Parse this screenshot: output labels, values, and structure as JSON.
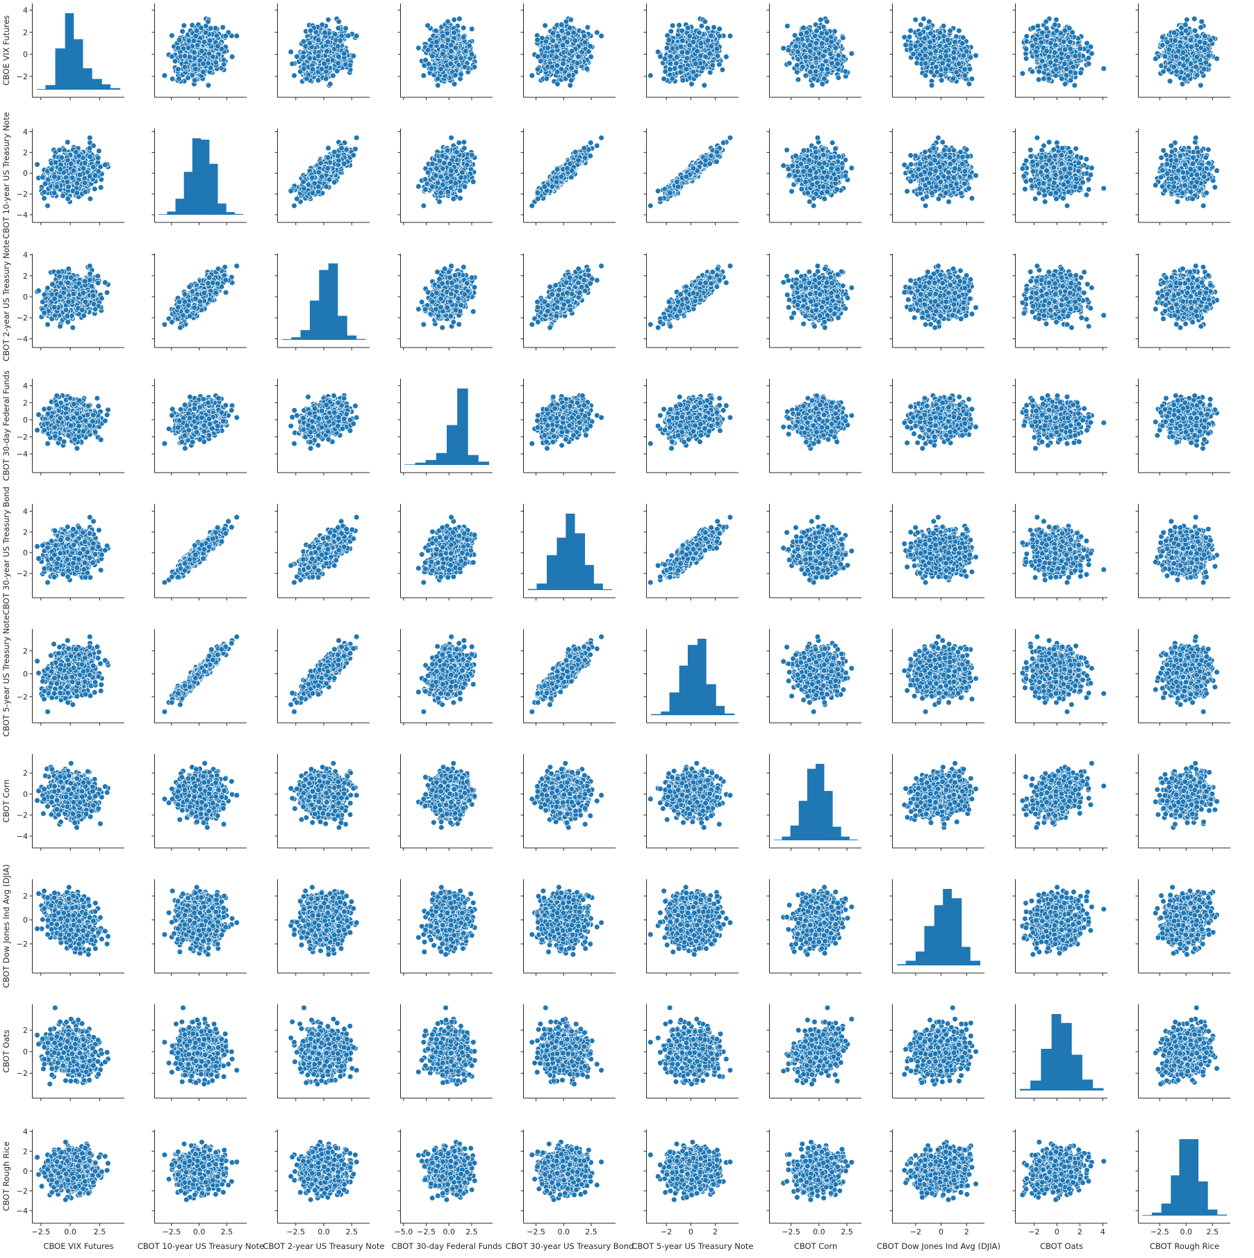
{
  "chart_data": {
    "type": "scatter-matrix",
    "variables": [
      "CBOE VIX Futures",
      "CBOT 10-year US Treasury Note",
      "CBOT 2-year US Treasury Note",
      "CBOT 30-day Federal Funds",
      "CBOT 30-year US Treasury Bond",
      "CBOT 5-year US Treasury Note",
      "CBOT Corn",
      "CBOT Dow Jones Ind Avg (DJIA)",
      "CBOT Oats",
      "CBOT Rough Rice"
    ],
    "ranges": [
      [
        -3.2,
        4.6
      ],
      [
        -4.0,
        4.3
      ],
      [
        -4.1,
        4.1
      ],
      [
        -5.3,
        4.8
      ],
      [
        -3.6,
        4.7
      ],
      [
        -3.6,
        3.9
      ],
      [
        -4.4,
        3.8
      ],
      [
        -3.8,
        3.4
      ],
      [
        -3.6,
        4.4
      ],
      [
        -4.5,
        4.2
      ]
    ],
    "x_ticks": [
      [
        -2.5,
        0.0,
        2.5
      ],
      [
        -2.5,
        0.0,
        2.5
      ],
      [
        -2.5,
        0.0,
        2.5
      ],
      [
        -5.0,
        -2.5,
        0.0,
        2.5
      ],
      [
        -2.5,
        0.0,
        2.5
      ],
      [
        -2,
        0,
        2
      ],
      [
        -2.5,
        0.0,
        2.5
      ],
      [
        -2,
        0,
        2
      ],
      [
        -2,
        0,
        2,
        4
      ],
      [
        -2.5,
        0.0,
        2.5
      ]
    ],
    "x_tick_labels": [
      [
        "−2.5",
        "0.0",
        "2.5"
      ],
      [
        "−2.5",
        "0.0",
        "2.5"
      ],
      [
        "−2.5",
        "0.0",
        "2.5"
      ],
      [
        "−5.0",
        "−2.5",
        "0.0",
        "2.5"
      ],
      [
        "−2.5",
        "0.0",
        "2.5"
      ],
      [
        "−2",
        "0",
        "2"
      ],
      [
        "−2.5",
        "0.0",
        "2.5"
      ],
      [
        "−2",
        "0",
        "2"
      ],
      [
        "−2",
        "0",
        "2",
        "4"
      ],
      [
        "−2.5",
        "0.0",
        "2.5"
      ]
    ],
    "y_ticks": [
      [
        -2,
        0,
        2,
        4
      ],
      [
        -4,
        -2,
        0,
        2,
        4
      ],
      [
        -4,
        -2,
        0,
        2,
        4
      ],
      [
        -4,
        -2,
        0,
        2,
        4
      ],
      [
        -2,
        0,
        2,
        4
      ],
      [
        -2,
        0,
        2
      ],
      [
        -4,
        -2,
        0,
        2
      ],
      [
        -2,
        0,
        2
      ],
      [
        -2,
        0,
        2
      ],
      [
        -4,
        -2,
        0,
        2,
        4
      ]
    ],
    "y_tick_labels": [
      [
        "−2",
        "0",
        "2",
        "4"
      ],
      [
        "−4",
        "−2",
        "0",
        "2",
        "4"
      ],
      [
        "−4",
        "−2",
        "0",
        "2",
        "4"
      ],
      [
        "−4",
        "−2",
        "0",
        "2",
        "4"
      ],
      [
        "−2",
        "0",
        "2",
        "4"
      ],
      [
        "−2",
        "0",
        "2"
      ],
      [
        "−4",
        "−2",
        "0",
        "2"
      ],
      [
        "−2",
        "0",
        "2"
      ],
      [
        "−2",
        "0",
        "2"
      ],
      [
        "−4",
        "−2",
        "0",
        "2",
        "4"
      ]
    ],
    "histograms": [
      {
        "edges": [
          -3.0,
          -2.3,
          -1.5,
          -0.7,
          0.0,
          0.75,
          1.5,
          2.3,
          3.0,
          3.8
        ],
        "counts": [
          4,
          30,
          270,
          500,
          330,
          140,
          70,
          35,
          10
        ]
      },
      {
        "edges": [
          -3.7,
          -2.9,
          -2.1,
          -1.3,
          -0.5,
          0.3,
          1.1,
          1.9,
          2.7,
          3.5,
          4.3
        ],
        "counts": [
          2,
          12,
          60,
          160,
          285,
          280,
          190,
          42,
          10,
          3
        ]
      },
      {
        "edges": [
          -3.7,
          -2.9,
          -2.1,
          -1.3,
          -0.5,
          0.3,
          1.1,
          1.9,
          2.7,
          3.5
        ],
        "counts": [
          3,
          12,
          45,
          180,
          320,
          350,
          110,
          20,
          4
        ]
      },
      {
        "edges": [
          -4.6,
          -3.6,
          -2.6,
          -1.6,
          -0.6,
          0.4,
          1.4,
          2.4,
          3.4
        ],
        "counts": [
          3,
          14,
          30,
          72,
          240,
          460,
          60,
          20
        ]
      },
      {
        "edges": [
          -3.4,
          -2.6,
          -1.7,
          -0.8,
          0.0,
          0.8,
          1.7,
          2.5,
          3.3,
          4.1
        ],
        "counts": [
          5,
          30,
          160,
          240,
          350,
          260,
          115,
          30,
          4
        ]
      },
      {
        "edges": [
          -3.4,
          -2.6,
          -1.9,
          -1.1,
          -0.4,
          0.4,
          1.1,
          1.9,
          2.6,
          3.4
        ],
        "counts": [
          5,
          18,
          110,
          240,
          340,
          370,
          150,
          45,
          8
        ]
      },
      {
        "edges": [
          -4.0,
          -3.2,
          -2.4,
          -1.6,
          -0.8,
          0.0,
          0.8,
          1.6,
          2.4,
          3.2,
          4.0
        ],
        "counts": [
          2,
          15,
          60,
          160,
          290,
          310,
          200,
          55,
          15,
          3
        ]
      },
      {
        "edges": [
          -3.6,
          -2.9,
          -2.1,
          -1.4,
          -0.6,
          0.1,
          0.8,
          1.6,
          2.3,
          3.1
        ],
        "counts": [
          5,
          20,
          60,
          170,
          260,
          330,
          290,
          80,
          20
        ]
      },
      {
        "edges": [
          -3.3,
          -2.4,
          -1.5,
          -0.6,
          0.2,
          1.1,
          2.0,
          2.9,
          3.8
        ],
        "counts": [
          8,
          50,
          210,
          385,
          340,
          180,
          55,
          12
        ]
      },
      {
        "edges": [
          -4.2,
          -3.3,
          -2.4,
          -1.5,
          -0.7,
          0.2,
          1.1,
          2.0,
          2.9,
          3.8
        ],
        "counts": [
          3,
          15,
          60,
          200,
          380,
          380,
          170,
          30,
          5
        ]
      }
    ],
    "correlations": [
      [
        1.0,
        0.22,
        0.2,
        0.05,
        0.18,
        0.22,
        -0.1,
        -0.33,
        -0.12,
        0.02
      ],
      [
        0.22,
        1.0,
        0.8,
        0.35,
        0.94,
        0.96,
        0.0,
        0.02,
        -0.08,
        -0.05
      ],
      [
        0.2,
        0.8,
        1.0,
        0.4,
        0.72,
        0.88,
        0.0,
        -0.02,
        -0.05,
        -0.03
      ],
      [
        0.05,
        0.35,
        0.4,
        1.0,
        0.32,
        0.38,
        0.02,
        0.0,
        0.0,
        0.0
      ],
      [
        0.18,
        0.94,
        0.72,
        0.32,
        1.0,
        0.88,
        0.0,
        0.02,
        -0.1,
        -0.06
      ],
      [
        0.22,
        0.96,
        0.88,
        0.38,
        0.88,
        1.0,
        0.0,
        0.0,
        -0.08,
        -0.04
      ],
      [
        -0.1,
        0.0,
        0.0,
        0.02,
        0.0,
        0.0,
        1.0,
        0.22,
        0.28,
        0.1
      ],
      [
        -0.33,
        0.02,
        -0.02,
        0.0,
        0.02,
        0.0,
        0.22,
        1.0,
        0.08,
        0.05
      ],
      [
        -0.12,
        -0.08,
        -0.05,
        0.0,
        -0.1,
        -0.08,
        0.28,
        0.08,
        1.0,
        0.18
      ],
      [
        0.02,
        -0.05,
        -0.03,
        0.0,
        -0.06,
        -0.04,
        0.1,
        0.05,
        0.18,
        1.0
      ]
    ],
    "grid": false,
    "legend": "none"
  }
}
